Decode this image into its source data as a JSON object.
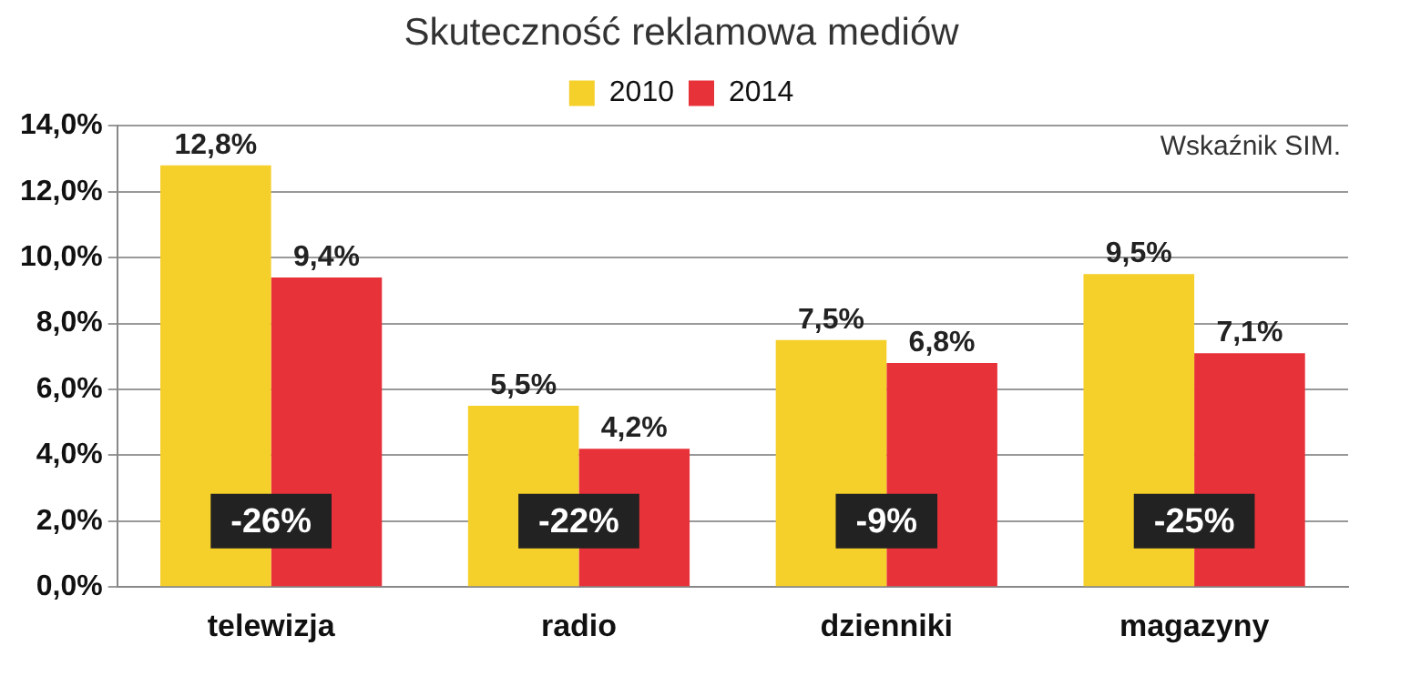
{
  "chart_data": {
    "type": "bar",
    "title": "Skuteczność reklamowa mediów",
    "categories": [
      "telewizja",
      "radio",
      "dzienniki",
      "magazyny"
    ],
    "series": [
      {
        "name": "2010",
        "color": "#f5cf2a",
        "values": [
          12.8,
          5.5,
          7.5,
          9.5
        ],
        "value_labels": [
          "12,8%",
          "5,5%",
          "7,5%",
          "9,5%"
        ]
      },
      {
        "name": "2014",
        "color": "#e8323a",
        "values": [
          9.4,
          4.2,
          6.8,
          7.1
        ],
        "value_labels": [
          "9,4%",
          "4,2%",
          "6,8%",
          "7,1%"
        ]
      }
    ],
    "ylim": [
      0,
      14
    ],
    "yticks": [
      {
        "value": 0,
        "label": "0,0%"
      },
      {
        "value": 2,
        "label": "2,0%"
      },
      {
        "value": 4,
        "label": "4,0%"
      },
      {
        "value": 6,
        "label": "6,0%"
      },
      {
        "value": 8,
        "label": "8,0%"
      },
      {
        "value": 10,
        "label": "10,0%"
      },
      {
        "value": 12,
        "label": "12,0%"
      },
      {
        "value": 14,
        "label": "14,0%"
      }
    ],
    "grid": "y",
    "legend": "top",
    "annotations": [
      {
        "text": "-26%",
        "x": "telewizja",
        "y": 2
      },
      {
        "text": "-22%",
        "x": "radio",
        "y": 2
      },
      {
        "text": "-9%",
        "x": "dzienniki",
        "y": 2
      },
      {
        "text": "-25%",
        "x": "magazyny",
        "y": 2
      },
      "Wskaźnik SIM."
    ]
  }
}
